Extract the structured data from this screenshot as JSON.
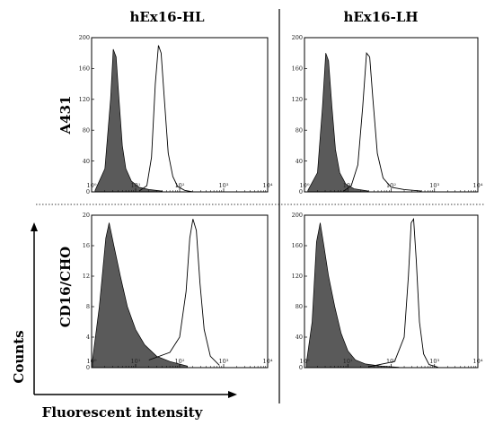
{
  "figure": {
    "column_titles": [
      "hEx16-HL",
      "hEx16-LH"
    ],
    "row_labels": [
      "A431",
      "CD16/CHO"
    ],
    "y_axis_title": "Counts",
    "x_axis_title": "Fluorescent intensity"
  },
  "chart_data": [
    {
      "type": "area",
      "row": "A431",
      "column": "hEx16-HL",
      "x_scale": "log",
      "xlim": [
        1,
        10000
      ],
      "ylim": [
        0,
        200
      ],
      "x_ticks": [
        "10⁰",
        "10¹",
        "10²",
        "10³",
        "10⁴"
      ],
      "y_ticks": [
        "0",
        "40",
        "80",
        "120",
        "160",
        "200"
      ],
      "series": [
        {
          "fill": "#5a5a5a",
          "filled": true,
          "points": [
            [
              1.2,
              2
            ],
            [
              2,
              30
            ],
            [
              2.7,
              120
            ],
            [
              3.1,
              185
            ],
            [
              3.6,
              175
            ],
            [
              4.2,
              120
            ],
            [
              5,
              60
            ],
            [
              6,
              30
            ],
            [
              8,
              14
            ],
            [
              12,
              6
            ],
            [
              20,
              3
            ],
            [
              40,
              1
            ]
          ]
        },
        {
          "filled": false,
          "points": [
            [
              12,
              1
            ],
            [
              18,
              8
            ],
            [
              23,
              45
            ],
            [
              28,
              140
            ],
            [
              33,
              190
            ],
            [
              38,
              180
            ],
            [
              45,
              120
            ],
            [
              55,
              50
            ],
            [
              70,
              20
            ],
            [
              90,
              7
            ],
            [
              130,
              2
            ],
            [
              200,
              0
            ]
          ]
        }
      ]
    },
    {
      "type": "area",
      "row": "A431",
      "column": "hEx16-LH",
      "x_scale": "log",
      "xlim": [
        1,
        10000
      ],
      "ylim": [
        0,
        200
      ],
      "x_ticks": [
        "10⁰",
        "10¹",
        "10²",
        "10³",
        "10⁴"
      ],
      "y_ticks": [
        "0",
        "40",
        "80",
        "120",
        "160",
        "200"
      ],
      "series": [
        {
          "fill": "#5a5a5a",
          "filled": true,
          "points": [
            [
              1.2,
              2
            ],
            [
              2,
              25
            ],
            [
              2.6,
              110
            ],
            [
              3.1,
              180
            ],
            [
              3.6,
              170
            ],
            [
              4.3,
              110
            ],
            [
              5.2,
              55
            ],
            [
              6.5,
              25
            ],
            [
              9,
              10
            ],
            [
              14,
              4
            ],
            [
              30,
              1
            ]
          ]
        },
        {
          "filled": false,
          "points": [
            [
              8,
              1
            ],
            [
              12,
              8
            ],
            [
              17,
              35
            ],
            [
              22,
              110
            ],
            [
              27,
              180
            ],
            [
              32,
              175
            ],
            [
              38,
              120
            ],
            [
              48,
              50
            ],
            [
              65,
              18
            ],
            [
              100,
              6
            ],
            [
              200,
              3
            ],
            [
              500,
              1
            ]
          ]
        }
      ]
    },
    {
      "type": "area",
      "row": "CD16/CHO",
      "column": "hEx16-HL",
      "x_scale": "log",
      "xlim": [
        1,
        10000
      ],
      "ylim": [
        0,
        20
      ],
      "x_ticks": [
        "10⁰",
        "10¹",
        "10²",
        "10³",
        "10⁴"
      ],
      "y_ticks": [
        "0",
        "4",
        "8",
        "12",
        "16",
        "20"
      ],
      "series": [
        {
          "fill": "#5a5a5a",
          "filled": true,
          "points": [
            [
              1.05,
              1
            ],
            [
              1.5,
              8
            ],
            [
              2.1,
              17
            ],
            [
              2.5,
              19
            ],
            [
              3.2,
              16
            ],
            [
              4.5,
              12
            ],
            [
              6.5,
              8
            ],
            [
              10,
              5
            ],
            [
              16,
              3
            ],
            [
              30,
              1.5
            ],
            [
              60,
              0.8
            ],
            [
              150,
              0.2
            ]
          ]
        },
        {
          "filled": false,
          "points": [
            [
              20,
              1
            ],
            [
              60,
              2
            ],
            [
              100,
              4
            ],
            [
              140,
              10
            ],
            [
              170,
              17
            ],
            [
              200,
              19.5
            ],
            [
              240,
              18
            ],
            [
              290,
              11
            ],
            [
              360,
              5
            ],
            [
              500,
              1.5
            ],
            [
              800,
              0.3
            ]
          ]
        }
      ]
    },
    {
      "type": "area",
      "row": "CD16/CHO",
      "column": "hEx16-LH",
      "x_scale": "log",
      "xlim": [
        1,
        10000
      ],
      "ylim": [
        0,
        200
      ],
      "x_ticks": [
        "10⁰",
        "10¹",
        "10²",
        "10³",
        "10⁴"
      ],
      "y_ticks": [
        "0",
        "40",
        "80",
        "120",
        "160",
        "200"
      ],
      "series": [
        {
          "fill": "#5a5a5a",
          "filled": true,
          "points": [
            [
              1.1,
              5
            ],
            [
              1.5,
              60
            ],
            [
              1.9,
              165
            ],
            [
              2.3,
              190
            ],
            [
              2.8,
              160
            ],
            [
              3.6,
              120
            ],
            [
              5,
              80
            ],
            [
              7,
              45
            ],
            [
              10,
              22
            ],
            [
              15,
              10
            ],
            [
              25,
              5
            ],
            [
              60,
              2
            ],
            [
              150,
              0.5
            ]
          ]
        },
        {
          "filled": false,
          "points": [
            [
              30,
              1
            ],
            [
              120,
              8
            ],
            [
              200,
              40
            ],
            [
              250,
              120
            ],
            [
              290,
              190
            ],
            [
              330,
              195
            ],
            [
              380,
              140
            ],
            [
              450,
              60
            ],
            [
              560,
              18
            ],
            [
              750,
              4
            ],
            [
              1200,
              0.5
            ]
          ]
        }
      ]
    }
  ]
}
